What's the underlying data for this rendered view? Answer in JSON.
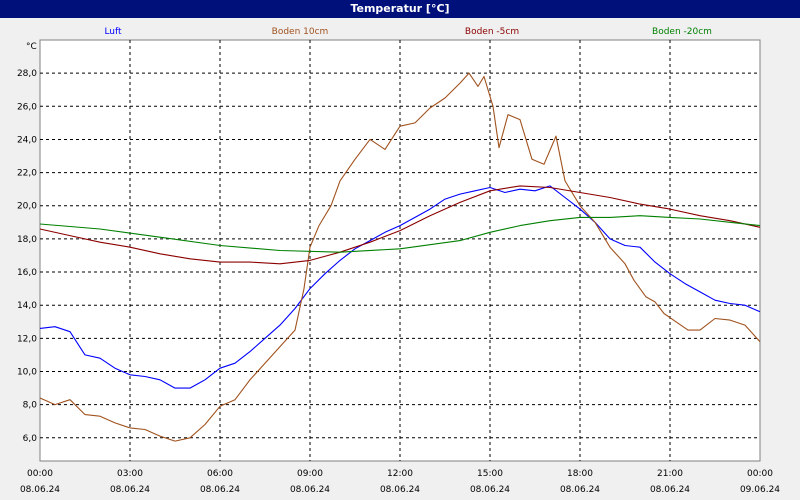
{
  "window": {
    "title": "Temperatur [°C]"
  },
  "colors": {
    "title_bg": "#00107a",
    "plot_bg": "#ffffff",
    "grid": "#000000",
    "luft": "#0000ff",
    "boden_10": "#a0521e",
    "boden_minus_5": "#8b0000",
    "boden_minus_20": "#008000"
  },
  "chart_data": {
    "type": "line",
    "title": "Temperatur [°C]",
    "unit_label": "°C",
    "ylim": [
      4.6,
      30.0
    ],
    "y_ticks": [
      "6,0",
      "8,0",
      "10,0",
      "12,0",
      "14,0",
      "16,0",
      "18,0",
      "20,0",
      "22,0",
      "24,0",
      "26,0",
      "28,0"
    ],
    "y_tick_values": [
      6,
      8,
      10,
      12,
      14,
      16,
      18,
      20,
      22,
      24,
      26,
      28
    ],
    "xlim_hours": [
      0,
      24
    ],
    "x_ticks": [
      {
        "time": "00:00",
        "date": "08.06.24",
        "hour": 0
      },
      {
        "time": "03:00",
        "date": "08.06.24",
        "hour": 3
      },
      {
        "time": "06:00",
        "date": "08.06.24",
        "hour": 6
      },
      {
        "time": "09:00",
        "date": "08.06.24",
        "hour": 9
      },
      {
        "time": "12:00",
        "date": "08.06.24",
        "hour": 12
      },
      {
        "time": "15:00",
        "date": "08.06.24",
        "hour": 15
      },
      {
        "time": "18:00",
        "date": "08.06.24",
        "hour": 18
      },
      {
        "time": "21:00",
        "date": "08.06.24",
        "hour": 21
      },
      {
        "time": "00:00",
        "date": "09.06.24",
        "hour": 24
      }
    ],
    "grid": true,
    "legend_position": "top",
    "series": [
      {
        "name": "Luft",
        "color": "#0000ff",
        "points": [
          [
            0,
            12.6
          ],
          [
            0.5,
            12.7
          ],
          [
            1,
            12.4
          ],
          [
            1.5,
            11
          ],
          [
            2,
            10.8
          ],
          [
            2.5,
            10.2
          ],
          [
            3,
            9.8
          ],
          [
            3.5,
            9.7
          ],
          [
            4,
            9.5
          ],
          [
            4.5,
            9.0
          ],
          [
            5,
            9.0
          ],
          [
            5.5,
            9.5
          ],
          [
            6,
            10.2
          ],
          [
            6.5,
            10.5
          ],
          [
            7,
            11.2
          ],
          [
            7.5,
            12.0
          ],
          [
            8,
            12.8
          ],
          [
            8.5,
            13.8
          ],
          [
            9,
            15.0
          ],
          [
            9.5,
            15.9
          ],
          [
            10,
            16.7
          ],
          [
            10.5,
            17.4
          ],
          [
            11,
            17.9
          ],
          [
            11.5,
            18.4
          ],
          [
            12,
            18.8
          ],
          [
            12.5,
            19.3
          ],
          [
            13,
            19.8
          ],
          [
            13.5,
            20.4
          ],
          [
            14,
            20.7
          ],
          [
            14.5,
            20.9
          ],
          [
            15,
            21.1
          ],
          [
            15.5,
            20.8
          ],
          [
            16,
            21.0
          ],
          [
            16.5,
            20.9
          ],
          [
            17,
            21.2
          ],
          [
            17.5,
            20.5
          ],
          [
            18,
            19.8
          ],
          [
            18.5,
            19.0
          ],
          [
            19,
            18.0
          ],
          [
            19.5,
            17.6
          ],
          [
            20,
            17.5
          ],
          [
            20.5,
            16.6
          ],
          [
            21,
            15.9
          ],
          [
            21.5,
            15.3
          ],
          [
            22,
            14.8
          ],
          [
            22.5,
            14.3
          ],
          [
            23,
            14.1
          ],
          [
            23.5,
            14.0
          ],
          [
            24,
            13.6
          ]
        ]
      },
      {
        "name": "Boden 10cm",
        "color": "#a0521e",
        "points": [
          [
            0,
            8.4
          ],
          [
            0.5,
            8.0
          ],
          [
            1,
            8.3
          ],
          [
            1.5,
            7.4
          ],
          [
            2,
            7.3
          ],
          [
            2.5,
            6.9
          ],
          [
            3,
            6.6
          ],
          [
            3.5,
            6.5
          ],
          [
            4,
            6.1
          ],
          [
            4.5,
            5.8
          ],
          [
            5,
            6.0
          ],
          [
            5.5,
            6.8
          ],
          [
            6,
            7.9
          ],
          [
            6.5,
            8.3
          ],
          [
            7,
            9.5
          ],
          [
            7.5,
            10.5
          ],
          [
            8,
            11.5
          ],
          [
            8.5,
            12.5
          ],
          [
            8.8,
            15
          ],
          [
            9,
            17.5
          ],
          [
            9.3,
            18.8
          ],
          [
            9.7,
            20
          ],
          [
            10,
            21.5
          ],
          [
            10.5,
            22.8
          ],
          [
            11,
            24.0
          ],
          [
            11.5,
            23.4
          ],
          [
            12,
            24.8
          ],
          [
            12.5,
            25.0
          ],
          [
            13,
            25.9
          ],
          [
            13.5,
            26.5
          ],
          [
            14,
            27.4
          ],
          [
            14.3,
            28.0
          ],
          [
            14.6,
            27.2
          ],
          [
            14.8,
            27.8
          ],
          [
            15.1,
            26.0
          ],
          [
            15.3,
            23.5
          ],
          [
            15.6,
            25.5
          ],
          [
            16,
            25.2
          ],
          [
            16.4,
            22.8
          ],
          [
            16.8,
            22.5
          ],
          [
            17.2,
            24.2
          ],
          [
            17.5,
            21.5
          ],
          [
            18,
            20.0
          ],
          [
            18.5,
            19.0
          ],
          [
            19,
            17.5
          ],
          [
            19.5,
            16.5
          ],
          [
            19.8,
            15.5
          ],
          [
            20.2,
            14.5
          ],
          [
            20.5,
            14.2
          ],
          [
            20.8,
            13.5
          ],
          [
            21.2,
            13.0
          ],
          [
            21.6,
            12.5
          ],
          [
            22,
            12.5
          ],
          [
            22.5,
            13.2
          ],
          [
            23,
            13.1
          ],
          [
            23.5,
            12.8
          ],
          [
            24,
            11.8
          ]
        ]
      },
      {
        "name": "Boden -5cm",
        "color": "#8b0000",
        "points": [
          [
            0,
            18.6
          ],
          [
            1,
            18.2
          ],
          [
            2,
            17.8
          ],
          [
            3,
            17.5
          ],
          [
            4,
            17.1
          ],
          [
            5,
            16.8
          ],
          [
            6,
            16.6
          ],
          [
            7,
            16.6
          ],
          [
            8,
            16.5
          ],
          [
            9,
            16.7
          ],
          [
            10,
            17.2
          ],
          [
            11,
            17.8
          ],
          [
            12,
            18.5
          ],
          [
            13,
            19.4
          ],
          [
            14,
            20.2
          ],
          [
            15,
            20.9
          ],
          [
            16,
            21.2
          ],
          [
            17,
            21.1
          ],
          [
            18,
            20.8
          ],
          [
            19,
            20.5
          ],
          [
            20,
            20.1
          ],
          [
            21,
            19.8
          ],
          [
            22,
            19.4
          ],
          [
            23,
            19.1
          ],
          [
            24,
            18.7
          ]
        ]
      },
      {
        "name": "Boden -20cm",
        "color": "#008000",
        "points": [
          [
            0,
            18.9
          ],
          [
            2,
            18.6
          ],
          [
            4,
            18.1
          ],
          [
            6,
            17.6
          ],
          [
            8,
            17.3
          ],
          [
            10,
            17.2
          ],
          [
            12,
            17.4
          ],
          [
            14,
            17.9
          ],
          [
            15,
            18.4
          ],
          [
            16,
            18.8
          ],
          [
            17,
            19.1
          ],
          [
            18,
            19.3
          ],
          [
            19,
            19.3
          ],
          [
            20,
            19.4
          ],
          [
            21,
            19.3
          ],
          [
            22,
            19.2
          ],
          [
            23,
            19.0
          ],
          [
            24,
            18.8
          ]
        ]
      }
    ]
  }
}
